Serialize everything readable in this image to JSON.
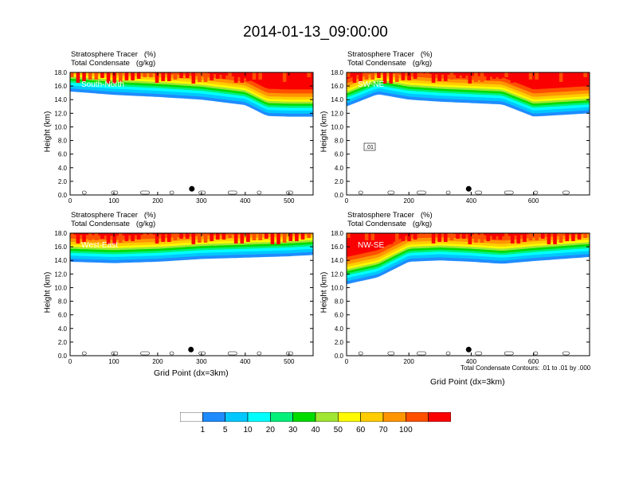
{
  "title": "2014-01-13_09:00:00",
  "field_labels": {
    "tracer": "Stratosphere Tracer   (%)",
    "condensate": "Total Condensate   (g/kg)"
  },
  "y_axis_label": "Height (km)",
  "x_axis_label": "Grid Point (dx=3km)",
  "contour_note": "Total Condensate Contours: .01 to .01 by .000",
  "contour_label": ".01",
  "colorbar": {
    "labels": [
      "1",
      "5",
      "10",
      "20",
      "30",
      "40",
      "50",
      "60",
      "70",
      "100"
    ],
    "colors": [
      "#ffffff",
      "#1e8cff",
      "#00c8ff",
      "#00ffff",
      "#00f07a",
      "#00dc00",
      "#a0e632",
      "#fffa00",
      "#ffcd00",
      "#ff9600",
      "#ff5000",
      "#fa0000"
    ]
  },
  "chart_data": [
    {
      "type": "heatmap",
      "name": "South-North",
      "xlim": [
        0,
        555
      ],
      "ylim": [
        0,
        18
      ],
      "xticks": [
        0,
        100,
        200,
        300,
        400,
        500
      ],
      "yticks": [
        "0.0",
        "2.0",
        "4.0",
        "6.0",
        "8.0",
        "10.0",
        "12.0",
        "14.0",
        "16.0",
        "18.0"
      ],
      "marker_x": 278,
      "tracer_1pct_base_km": {
        "x": [
          0,
          100,
          200,
          300,
          400,
          450,
          500,
          555
        ],
        "y": [
          15.2,
          14.7,
          14.4,
          14.0,
          13.2,
          11.6,
          11.5,
          11.5
        ]
      }
    },
    {
      "type": "heatmap",
      "name": "SW-NE",
      "xlim": [
        0,
        780
      ],
      "ylim": [
        0,
        18
      ],
      "xticks": [
        0,
        200,
        400,
        600
      ],
      "yticks": [
        "0.0",
        "2.0",
        "4.0",
        "6.0",
        "8.0",
        "10.0",
        "12.0",
        "14.0",
        "16.0",
        "18.0"
      ],
      "marker_x": 392,
      "tracer_1pct_base_km": {
        "x": [
          0,
          100,
          200,
          300,
          400,
          500,
          600,
          780
        ],
        "y": [
          13.0,
          14.8,
          14.0,
          13.7,
          13.5,
          13.3,
          11.5,
          12.0
        ]
      }
    },
    {
      "type": "heatmap",
      "name": "West-East",
      "xlim": [
        0,
        555
      ],
      "ylim": [
        0,
        18
      ],
      "xticks": [
        0,
        100,
        200,
        300,
        400,
        500
      ],
      "yticks": [
        "0.0",
        "2.0",
        "4.0",
        "6.0",
        "8.0",
        "10.0",
        "12.0",
        "14.0",
        "16.0",
        "18.0"
      ],
      "marker_x": 276,
      "tracer_1pct_base_km": {
        "x": [
          0,
          100,
          200,
          300,
          400,
          500,
          555
        ],
        "y": [
          13.8,
          13.6,
          13.8,
          14.2,
          14.4,
          14.6,
          14.8
        ]
      }
    },
    {
      "type": "heatmap",
      "name": "NW-SE",
      "xlim": [
        0,
        780
      ],
      "ylim": [
        0,
        18
      ],
      "xticks": [
        0,
        200,
        400,
        600
      ],
      "yticks": [
        "0.0",
        "2.0",
        "4.0",
        "6.0",
        "8.0",
        "10.0",
        "12.0",
        "14.0",
        "16.0",
        "18.0"
      ],
      "marker_x": 392,
      "tracer_1pct_base_km": {
        "x": [
          0,
          100,
          200,
          300,
          400,
          500,
          600,
          780
        ],
        "y": [
          10.5,
          11.5,
          13.8,
          14.0,
          13.8,
          13.5,
          13.9,
          14.5
        ]
      }
    }
  ]
}
